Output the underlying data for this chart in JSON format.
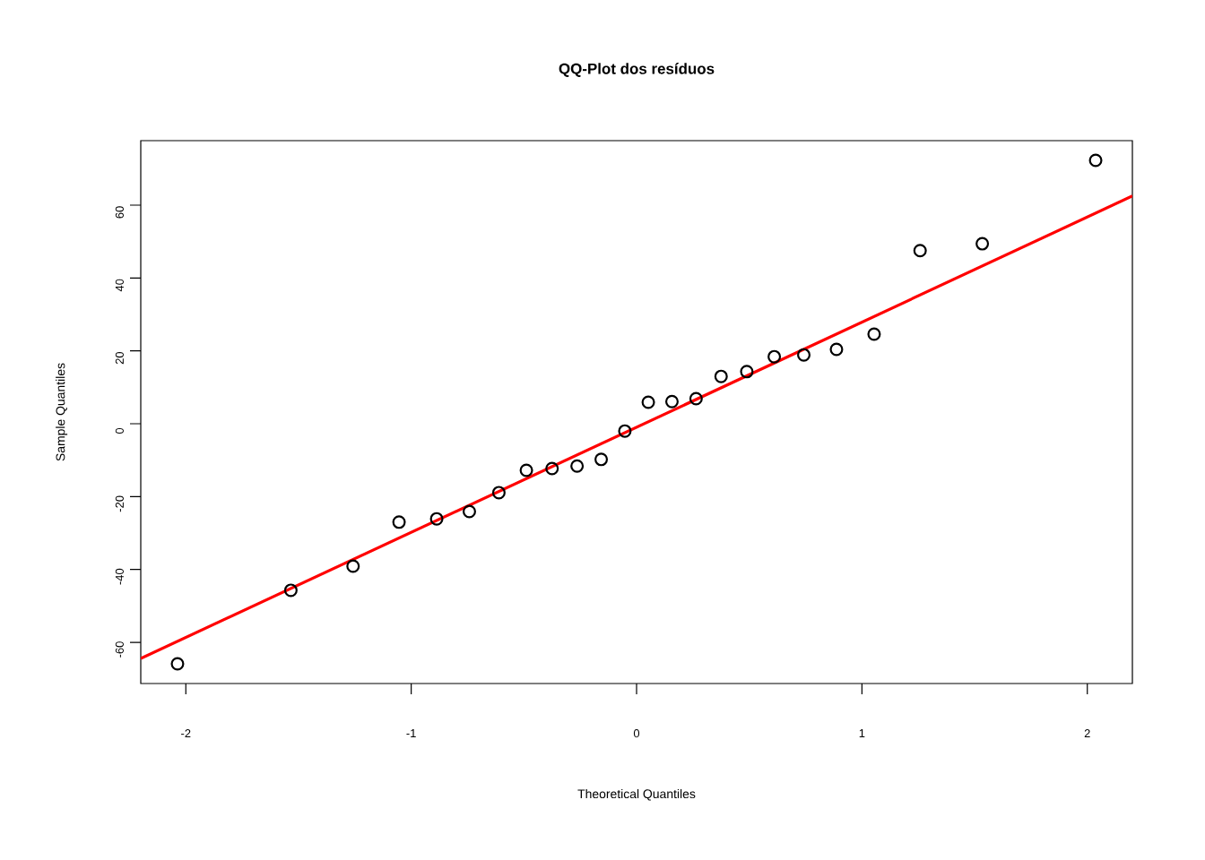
{
  "chart_data": {
    "type": "scatter",
    "title": "QQ-Plot dos resíduos",
    "xlabel": "Theoretical Quantiles",
    "ylabel": "Sample Quantiles",
    "xlim": [
      -2.2,
      2.2
    ],
    "ylim": [
      -71.3,
      77.7
    ],
    "xticks": [
      -2,
      -1,
      0,
      1,
      2
    ],
    "yticks": [
      -60,
      -40,
      -20,
      0,
      20,
      40,
      60
    ],
    "marker": "circle",
    "series": [
      {
        "color": "#000000",
        "x": [
          -2.037,
          -1.534,
          -1.258,
          -1.054,
          -0.887,
          -0.742,
          -0.611,
          -0.489,
          -0.375,
          -0.264,
          -0.157,
          -0.052,
          0.052,
          0.157,
          0.264,
          0.375,
          0.489,
          0.611,
          0.742,
          0.887,
          1.054,
          1.258,
          1.534,
          2.037
        ],
        "values": [
          -65.9,
          -45.7,
          -39.1,
          -27.0,
          -26.1,
          -24.1,
          -18.9,
          -12.8,
          -12.3,
          -11.6,
          -9.8,
          -2.0,
          5.9,
          6.1,
          6.9,
          13.0,
          14.3,
          18.4,
          18.9,
          20.4,
          24.6,
          47.5,
          49.4,
          72.3
        ]
      },
      {
        "type": "line",
        "color": "#ff0000",
        "marker": "none",
        "x": [
          -2.2,
          2.2
        ],
        "values": [
          -64.4,
          62.5
        ]
      }
    ]
  }
}
